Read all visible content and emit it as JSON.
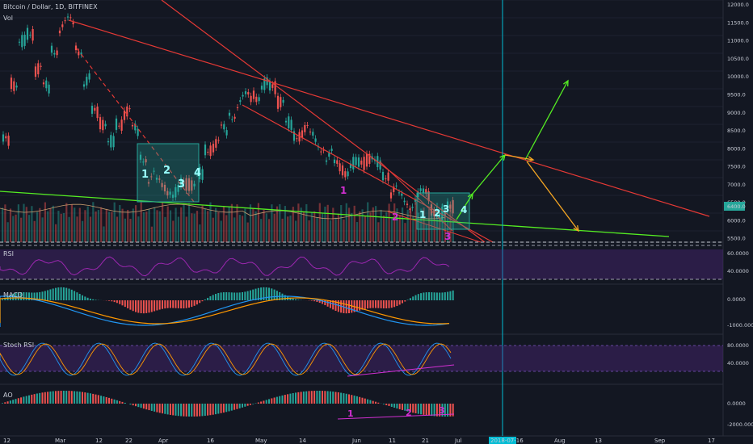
{
  "title": "Bitcoin / Dollar, 1D, BITFINEX",
  "volume_label": "Vol",
  "panels": {
    "rsi": "RSI",
    "macd": "MACD",
    "stoch": "Stoch RSI",
    "ao": "AO"
  },
  "colors": {
    "background": "#131722",
    "up": "#26a69a",
    "down": "#ef5350",
    "trend_red": "#e53935",
    "trend_green": "#55ee22",
    "cyan_marker": "#00bcd4",
    "projection_green": "#55ee22",
    "projection_orange": "#f5a623",
    "annotation_magenta": "#d22fd2",
    "annotation_cyan": "#9ff",
    "panel_purple": "#3b1f5c",
    "rsi_line": "#9c27b0",
    "macd_blue": "#2196f3",
    "macd_orange": "#ff9800"
  },
  "chart_data": [
    {
      "type": "candlestick",
      "title": "Bitcoin / Dollar, 1D, BITFINEX",
      "y_ticks": [
        "12000.0",
        "11500.0",
        "11000.0",
        "10500.0",
        "10000.0",
        "9500.0",
        "9000.0",
        "8500.0",
        "8000.0",
        "7500.0",
        "7000.0",
        "6500.0",
        "6000.0",
        "5500.0"
      ],
      "price_label": "6400.0",
      "ylim": [
        5400,
        12050
      ]
    },
    {
      "type": "line",
      "title": "RSI",
      "y_ticks": [
        "60.0000",
        "40.0000"
      ]
    },
    {
      "type": "line",
      "title": "MACD",
      "y_ticks": [
        "0.0000",
        "-1000.0000"
      ]
    },
    {
      "type": "line",
      "title": "Stoch RSI",
      "y_ticks": [
        "80.0000",
        "40.0000"
      ]
    },
    {
      "type": "bar",
      "title": "AO",
      "y_ticks": [
        "0.0000",
        "-2000.0000"
      ]
    }
  ],
  "x_axis": {
    "labels": [
      "12",
      "Mar",
      "12",
      "22",
      "Apr",
      "16",
      "May",
      "14",
      "Jun",
      "11",
      "21",
      "Jul",
      "2018-07-16",
      "Aug",
      "13",
      "Sep",
      "17"
    ]
  },
  "annotations": {
    "box1": [
      "1",
      "2",
      "3",
      "4"
    ],
    "box2": [
      "1",
      "2",
      "3",
      "4"
    ],
    "wave_low": [
      "1",
      "2",
      "3"
    ],
    "ao_marks": [
      "1",
      "2",
      "3"
    ]
  }
}
